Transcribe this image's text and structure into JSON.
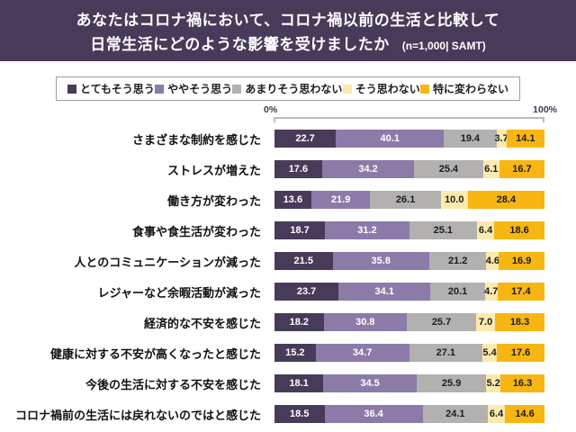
{
  "header": {
    "title_line1": "あなたはコロナ禍において、コロナ禍以前の生活と比較して",
    "title_line2": "日常生活にどのような影響を受けましたか",
    "sample_note": "(n=1,000| SAMT)"
  },
  "colors": {
    "header_background": "#483b59",
    "header_text": "#ffffff",
    "legend_border": "#9e9e9e",
    "bracket": "#bcbcbc",
    "axis_text": "#3f3550"
  },
  "chart_data": {
    "type": "bar",
    "orientation": "horizontal",
    "stacked": true,
    "unit": "%",
    "axis": {
      "min_label": "0%",
      "max_label": "100%",
      "range": [
        0,
        100
      ]
    },
    "legend_position": "top",
    "categories": [
      "さまざまな制約を感じた",
      "ストレスが増えた",
      "働き方が変わった",
      "食事や食生活が変わった",
      "人とのコミュニケーションが減った",
      "レジャーなど余暇活動が減った",
      "経済的な不安を感じた",
      "健康に対する不安が高くなったと感じた",
      "今後の生活に対する不安を感じた",
      "コロナ禍前の生活には戻れないのではと感じた"
    ],
    "series": [
      {
        "name": "とてもそう思う",
        "color": "#483b59",
        "text_color": "#ffffff",
        "values": [
          22.7,
          17.6,
          13.6,
          18.7,
          21.5,
          23.7,
          18.2,
          15.2,
          18.1,
          18.5
        ]
      },
      {
        "name": "ややそう思う",
        "color": "#8c7aa9",
        "text_color": "#ffffff",
        "values": [
          40.1,
          34.2,
          21.9,
          31.2,
          35.8,
          34.1,
          30.8,
          34.7,
          34.5,
          36.4
        ]
      },
      {
        "name": "あまりそう思わない",
        "color": "#b3b0b0",
        "text_color": "#1d1d1d",
        "values": [
          19.4,
          25.4,
          26.1,
          25.1,
          21.2,
          20.1,
          25.7,
          27.1,
          25.9,
          24.1
        ]
      },
      {
        "name": "そう思わない",
        "color": "#fce9ad",
        "text_color": "#1d1d1d",
        "values": [
          3.7,
          6.1,
          10.0,
          6.4,
          4.6,
          4.7,
          7.0,
          5.4,
          5.2,
          6.4
        ]
      },
      {
        "name": "特に変わらない",
        "color": "#f7b611",
        "text_color": "#1d1d1d",
        "values": [
          14.1,
          16.7,
          28.4,
          18.6,
          16.9,
          17.4,
          18.3,
          17.6,
          16.3,
          14.6
        ]
      }
    ]
  }
}
